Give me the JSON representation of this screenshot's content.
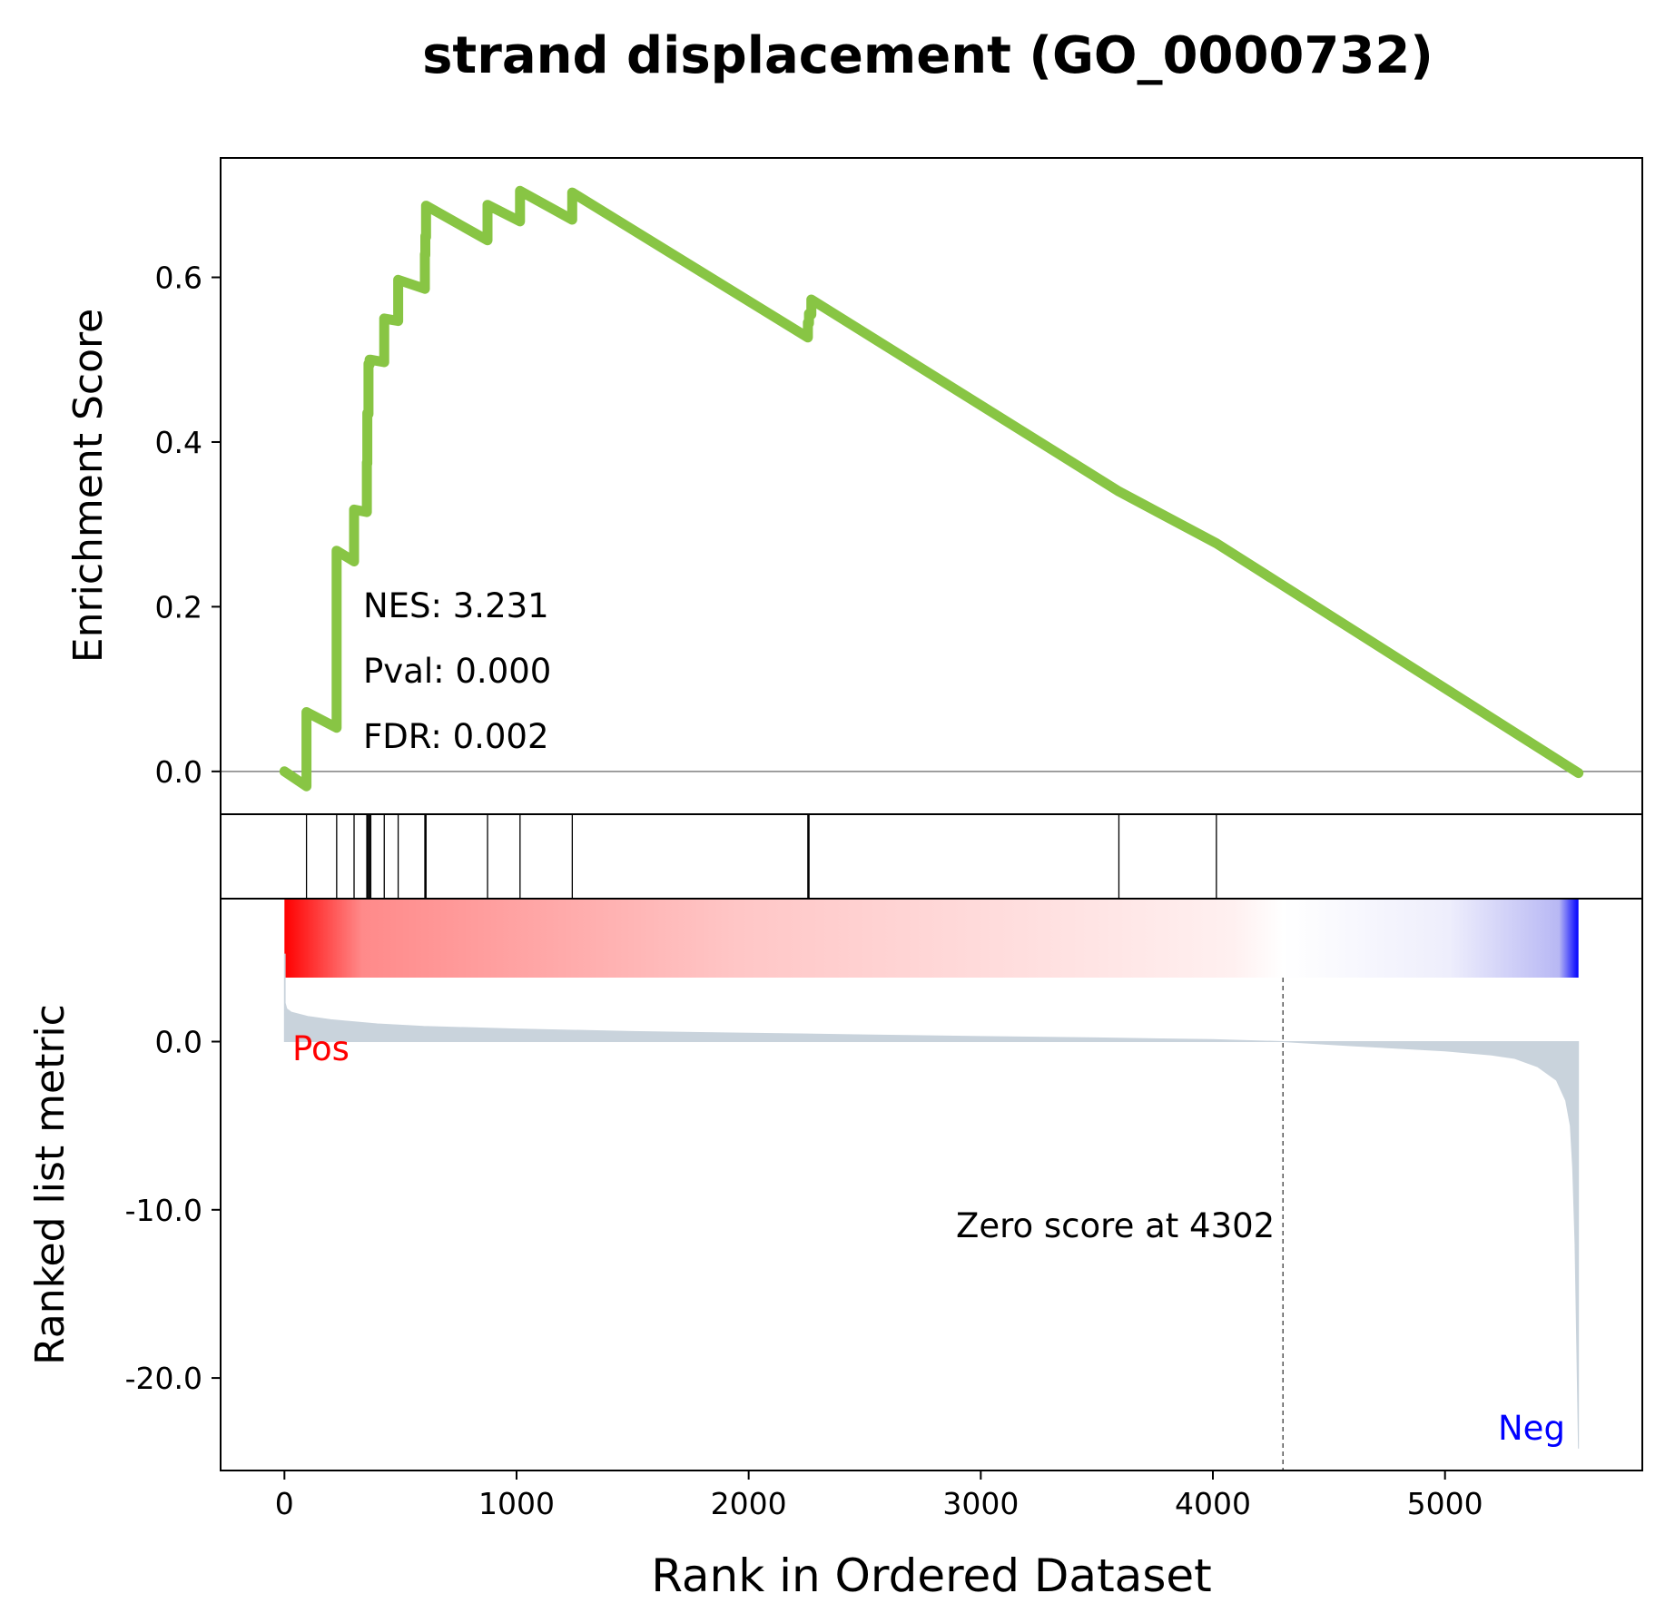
{
  "chart_data": {
    "type": "line",
    "title": "strand displacement (GO_0000732)",
    "xlabel": "Rank in Ordered Dataset",
    "xlim": [
      -275,
      5850
    ],
    "x_ticks": [
      0,
      1000,
      2000,
      3000,
      4000,
      5000
    ],
    "x_tick_labels": [
      "0",
      "1000",
      "2000",
      "3000",
      "4000",
      "5000"
    ],
    "enrichment": {
      "ylabel": "Enrichment Score",
      "ylim": [
        -0.052,
        0.745
      ],
      "y_ticks": [
        0.0,
        0.2,
        0.4,
        0.6
      ],
      "y_tick_labels": [
        "0.0",
        "0.2",
        "0.4",
        "0.6"
      ],
      "color": "#88c544",
      "x": [
        0,
        95,
        95,
        225,
        225,
        300,
        300,
        355,
        355,
        357,
        357,
        362,
        362,
        367,
        367,
        372,
        372,
        430,
        430,
        490,
        490,
        605,
        605,
        607,
        607,
        610,
        610,
        875,
        875,
        1015,
        1015,
        1240,
        1240,
        2255,
        2255,
        2260,
        2260,
        2270,
        2270,
        3595,
        3595,
        4015,
        4015,
        5575
      ],
      "y": [
        0.0,
        -0.018,
        0.072,
        0.053,
        0.268,
        0.255,
        0.318,
        0.315,
        0.375,
        0.374,
        0.435,
        0.434,
        0.495,
        0.494,
        0.5,
        0.497,
        0.5,
        0.497,
        0.55,
        0.547,
        0.597,
        0.586,
        0.628,
        0.627,
        0.65,
        0.649,
        0.687,
        0.645,
        0.688,
        0.668,
        0.705,
        0.67,
        0.703,
        0.527,
        0.545,
        0.544,
        0.556,
        0.555,
        0.573,
        0.34,
        0.34,
        0.277,
        0.277,
        -0.002
      ],
      "annotations": [
        "NES: 3.231",
        "Pval: 0.000",
        "FDR: 0.002"
      ]
    },
    "hits": [
      95,
      225,
      300,
      355,
      357,
      362,
      367,
      372,
      430,
      490,
      605,
      607,
      610,
      875,
      1015,
      1240,
      2255,
      2260,
      3595,
      4015
    ],
    "ranked_metric": {
      "ylabel": "Ranked list metric",
      "ylim": [
        -25.5,
        8.5
      ],
      "y_ticks": [
        0.0,
        -10.0,
        -20.0
      ],
      "y_tick_labels": [
        "0.0",
        "-10.0",
        "-20.0"
      ],
      "fill_color": "#c9d3dc",
      "x": [
        0,
        3,
        3,
        10,
        30,
        100,
        200,
        400,
        600,
        1000,
        1500,
        2000,
        2500,
        3000,
        3500,
        4000,
        4302,
        4600,
        5000,
        5200,
        5300,
        5400,
        5480,
        5520,
        5540,
        5550,
        5560,
        5570,
        5575
      ],
      "y": [
        5.2,
        5.2,
        2.3,
        1.95,
        1.75,
        1.5,
        1.3,
        1.05,
        0.9,
        0.75,
        0.6,
        0.5,
        0.4,
        0.3,
        0.22,
        0.12,
        0.0,
        -0.25,
        -0.55,
        -0.8,
        -1.0,
        -1.5,
        -2.3,
        -3.5,
        -5.0,
        -7.5,
        -12.0,
        -20.0,
        -24.2
      ],
      "pos_label": "Pos",
      "neg_label": "Neg",
      "pos_color": "#ff0000",
      "neg_color": "#0000ff",
      "zero_cross": 4302,
      "zero_label": "Zero score at 4302",
      "heatmap_colors": [
        "#ff0000",
        "#ffffff",
        "#0000ff"
      ]
    }
  }
}
